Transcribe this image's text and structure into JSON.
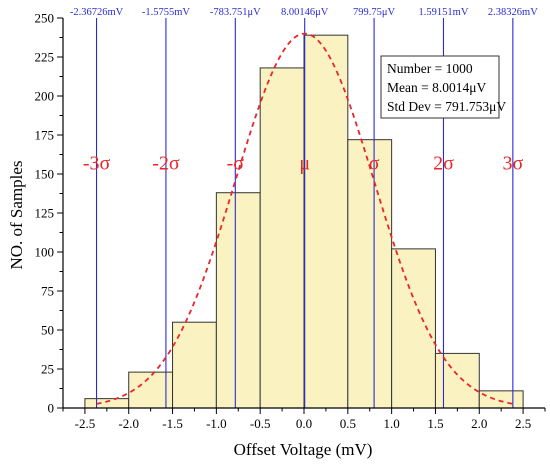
{
  "chart_data": {
    "type": "bar",
    "title": "",
    "xlabel": "Offset Voltage (mV)",
    "ylabel": "NO. of Samples",
    "xlim": [
      -2.75,
      2.75
    ],
    "ylim": [
      0,
      250
    ],
    "x_ticks": [
      -2.5,
      -2.0,
      -1.5,
      -1.0,
      -0.5,
      0.0,
      0.5,
      1.0,
      1.5,
      2.0,
      2.5
    ],
    "x_tick_labels": [
      "-2.5",
      "-2.0",
      "-1.5",
      "-1.0",
      "-0.5",
      "0.0",
      "0.5",
      "1.0",
      "1.5",
      "2.0",
      "2.5"
    ],
    "y_ticks": [
      0,
      25,
      50,
      75,
      100,
      125,
      150,
      175,
      200,
      225,
      250
    ],
    "y_tick_labels": [
      "0",
      "25",
      "50",
      "75",
      "100",
      "125",
      "150",
      "175",
      "200",
      "225",
      "250"
    ],
    "bin_edges": [
      -2.5,
      -2.0,
      -1.5,
      -1.0,
      -0.5,
      0.0,
      0.5,
      1.0,
      1.5,
      2.0,
      2.5
    ],
    "bars": [
      {
        "x0": -2.5,
        "x1": -2.0,
        "value": 6
      },
      {
        "x0": -2.0,
        "x1": -1.5,
        "value": 23
      },
      {
        "x0": -1.5,
        "x1": -1.0,
        "value": 55
      },
      {
        "x0": -1.0,
        "x1": -0.5,
        "value": 138
      },
      {
        "x0": -0.5,
        "x1": 0.0,
        "value": 218
      },
      {
        "x0": 0.0,
        "x1": 0.5,
        "value": 239
      },
      {
        "x0": 0.5,
        "x1": 1.0,
        "value": 172
      },
      {
        "x0": 1.0,
        "x1": 1.5,
        "value": 102
      },
      {
        "x0": 1.5,
        "x1": 2.0,
        "value": 35
      },
      {
        "x0": 2.0,
        "x1": 2.5,
        "value": 11
      }
    ],
    "fit_curve": {
      "type": "normal",
      "mean_mV": 0.0080014,
      "sigma_mV": 0.791753,
      "peak": 240,
      "color": "#e8262a"
    },
    "sigma_lines": [
      {
        "x": -2.36726,
        "top_label": "-2.36726mV",
        "marker": "-3σ"
      },
      {
        "x": -1.5755,
        "top_label": "-1.5755mV",
        "marker": "-2σ"
      },
      {
        "x": -0.783751,
        "top_label": "-783.751μV",
        "marker": "-σ"
      },
      {
        "x": 0.00800146,
        "top_label": "8.00146μV",
        "marker": "μ"
      },
      {
        "x": 0.79975,
        "top_label": "799.75μV",
        "marker": "σ"
      },
      {
        "x": 1.59151,
        "top_label": "1.59151mV",
        "marker": "2σ"
      },
      {
        "x": 2.38326,
        "top_label": "2.38326mV",
        "marker": "3σ"
      }
    ],
    "stats_box": {
      "lines": [
        "Number = 1000",
        "Mean = 8.0014μV",
        "Std Dev = 791.753μV"
      ],
      "placement": "top-right"
    },
    "colors": {
      "bar_fill": "#faf3c1",
      "bar_stroke": "#333333",
      "sigma_line": "#2b2bd6",
      "sigma_label": "#2b2bd6",
      "marker": "#e8262a",
      "axis": "#000000"
    },
    "grid": false,
    "legend": "none"
  }
}
